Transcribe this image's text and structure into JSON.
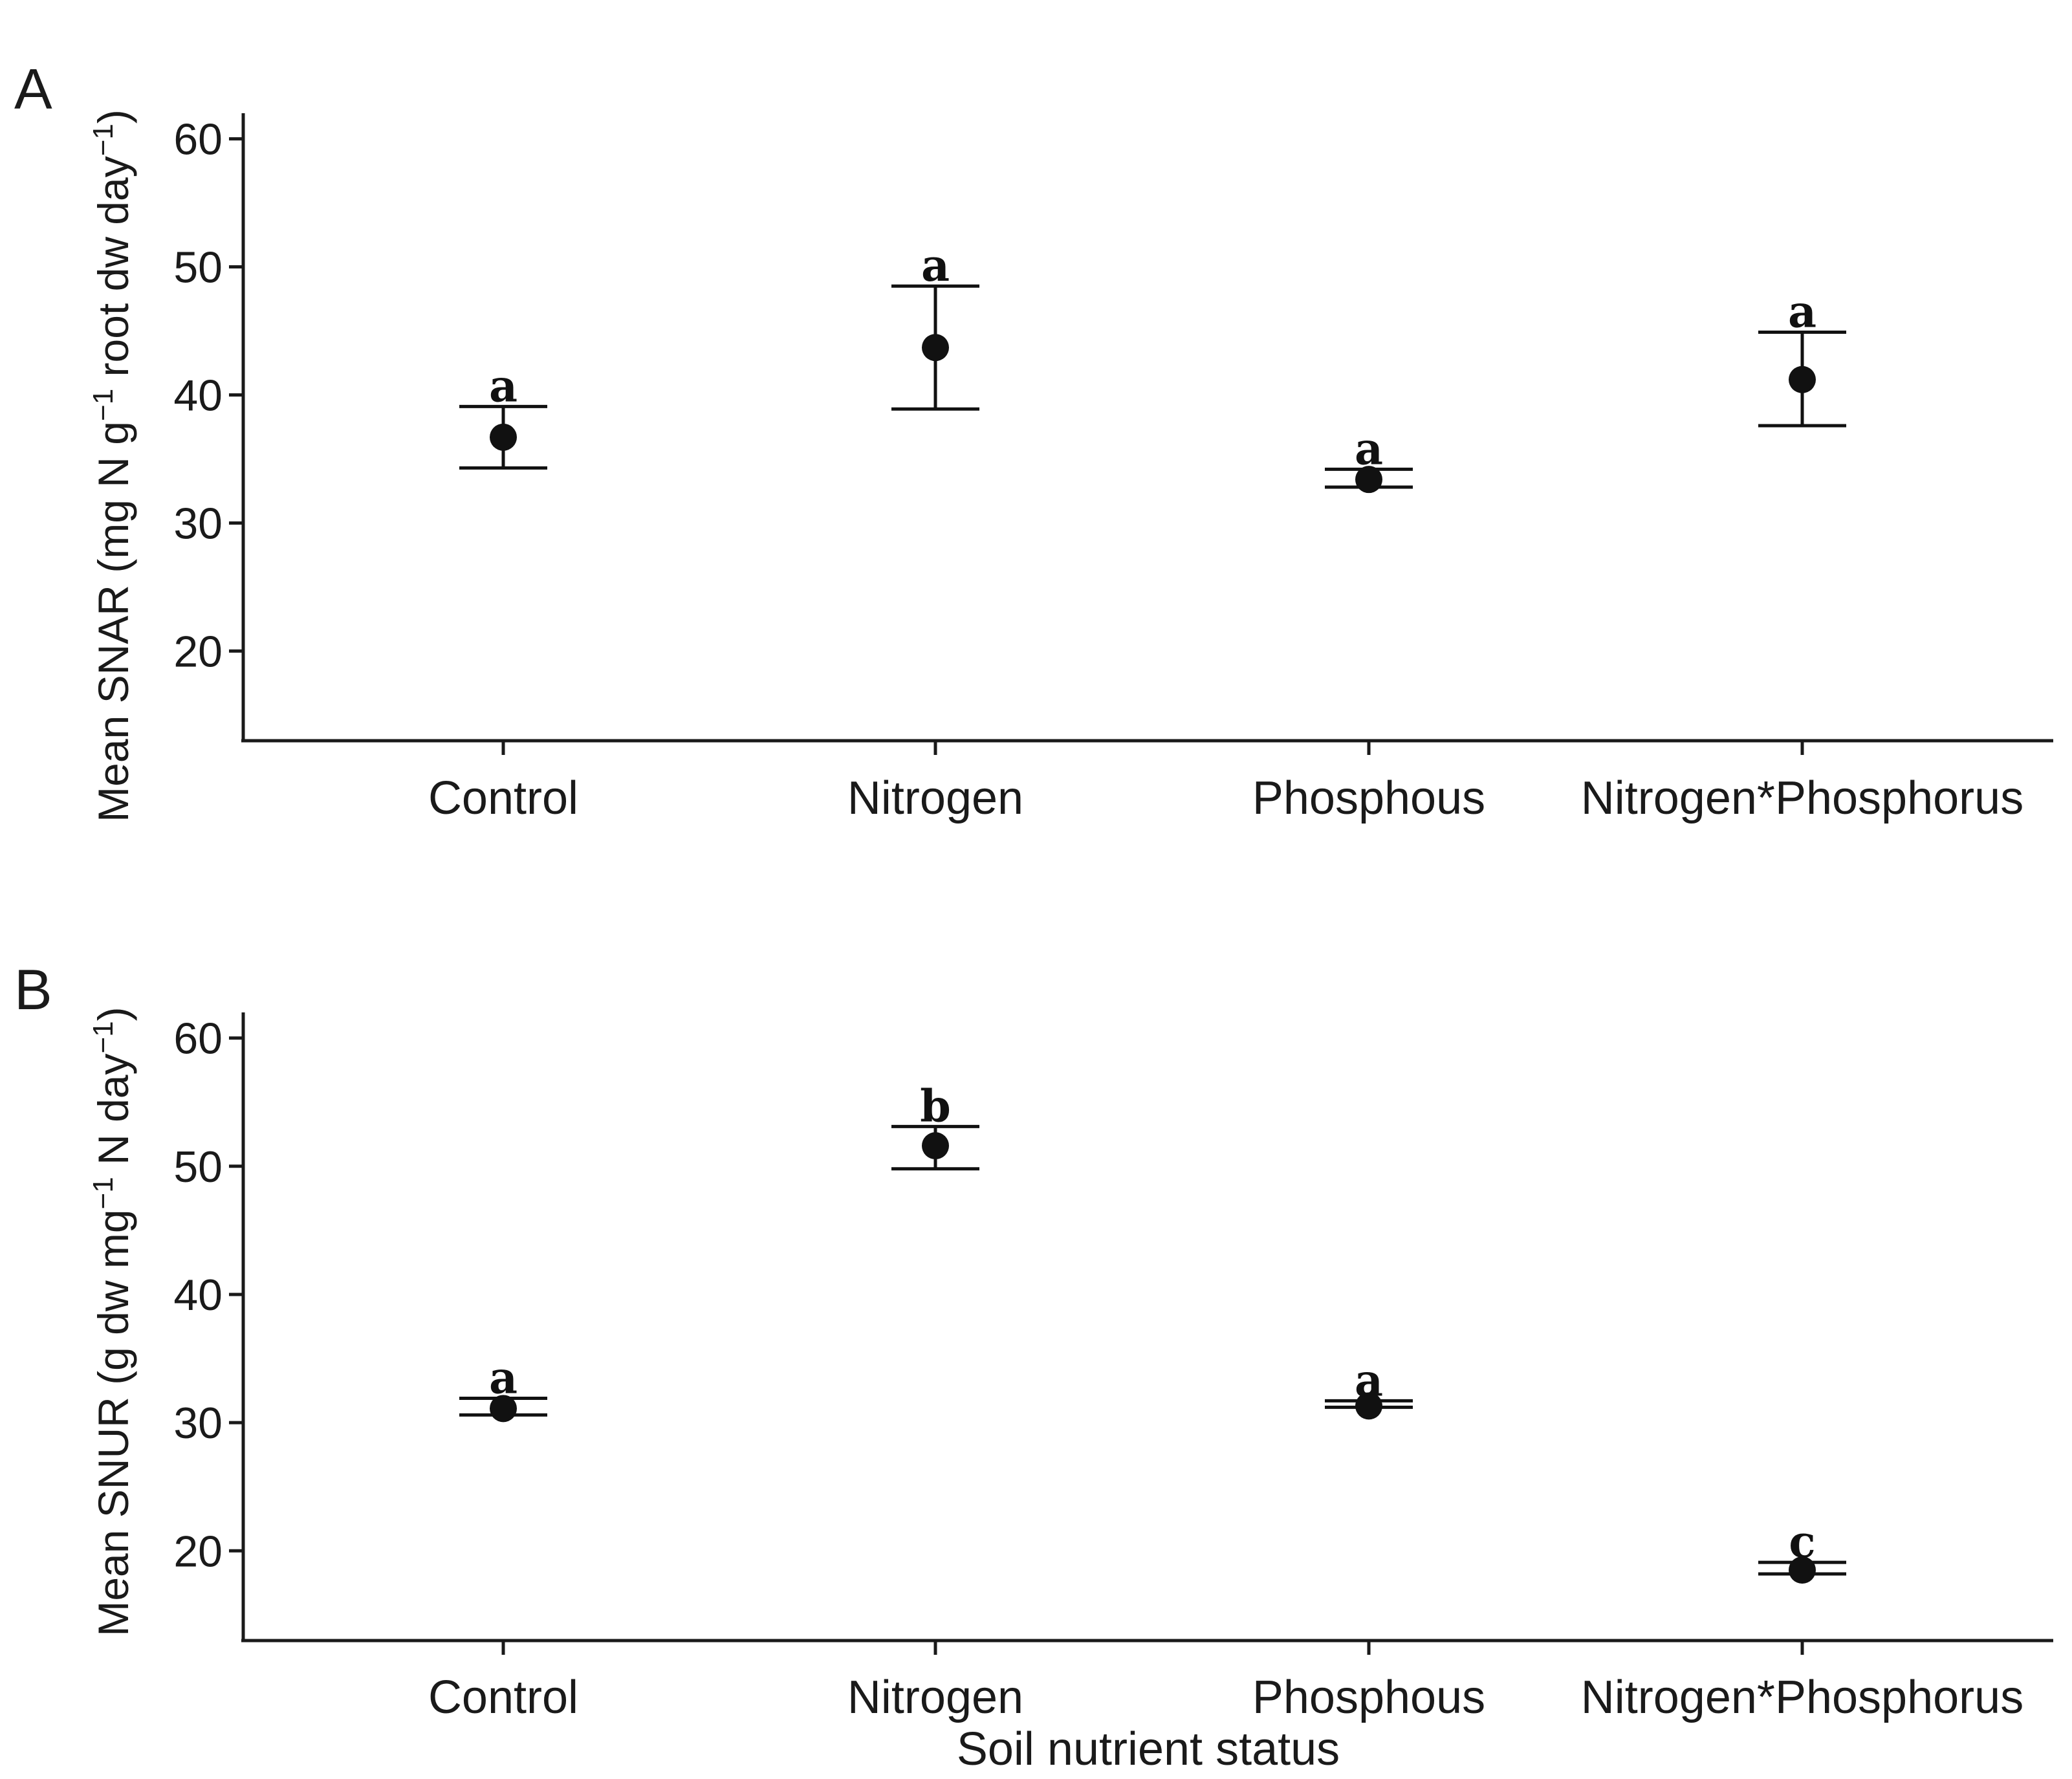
{
  "figure": {
    "xlabel": "Soil nutrient status"
  },
  "chart_data": [
    {
      "type": "scatter",
      "panel": "A",
      "ylabel": {
        "prefix": "Mean SNAR (mg N g",
        "sup1": "−1",
        "middle": " root dw day",
        "sup2": "−1",
        "suffix": ")"
      },
      "categories": [
        "Control",
        "Nitrogen",
        "Phosphous",
        "Nitrogen*Phosphorus"
      ],
      "means": [
        36.7,
        43.7,
        33.4,
        41.2
      ],
      "lower": [
        34.3,
        38.9,
        32.8,
        37.6
      ],
      "upper": [
        39.1,
        48.5,
        34.2,
        44.9
      ],
      "letters": [
        "a",
        "a",
        "a",
        "a"
      ],
      "ylim": [
        13,
        62
      ],
      "yticks": [
        20,
        30,
        40,
        50,
        60
      ]
    },
    {
      "type": "scatter",
      "panel": "B",
      "ylabel": {
        "prefix": "Mean SNUR (g dw mg",
        "sup1": "−1",
        "middle": " N day",
        "sup2": "−1",
        "suffix": ")"
      },
      "categories": [
        "Control",
        "Nitrogen",
        "Phosphous",
        "Nitrogen*Phosphorus"
      ],
      "means": [
        31.1,
        51.6,
        31.3,
        18.5
      ],
      "lower": [
        30.6,
        49.8,
        31.2,
        18.2
      ],
      "upper": [
        31.9,
        53.1,
        31.7,
        19.1
      ],
      "letters": [
        "a",
        "b",
        "a",
        "c"
      ],
      "ylim": [
        13,
        62
      ],
      "yticks": [
        20,
        30,
        40,
        50,
        60
      ]
    }
  ]
}
